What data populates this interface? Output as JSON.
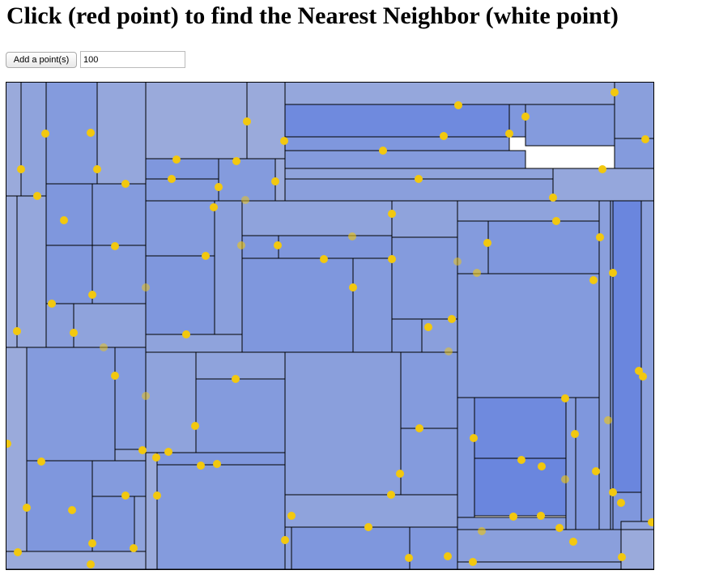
{
  "header": {
    "title": "Click (red point) to find the Nearest Neighbor (white point)"
  },
  "controls": {
    "button": "Add a point(s)",
    "count_input": "100"
  }
}
